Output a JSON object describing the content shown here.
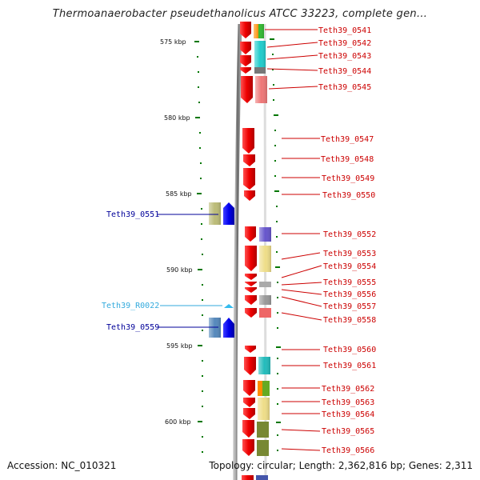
{
  "title": "Thermoanaerobacter pseudethanolicus ATCC 33223, complete gen...",
  "accession": "Accession: NC_010321",
  "topology": "Topology: circular; Length: 2,362,816 bp; Genes: 2,311",
  "scale_labels": [
    "575 kbp",
    "580 kbp",
    "585 kbp",
    "590 kbp",
    "595 kbp",
    "600 kbp"
  ],
  "colors": {
    "gene_red": "#e00000",
    "gene_blue": "#0000e0",
    "rna_cyan": "#33bbee",
    "label_red": "#cc0000",
    "label_blue": "#000099",
    "label_cyan": "#33aadd",
    "tick_green": "#007700"
  },
  "right_labels": [
    "Teth39_0541",
    "Teth39_0542",
    "Teth39_0543",
    "Teth39_0544",
    "Teth39_0545",
    "Teth39_0547",
    "Teth39_0548",
    "Teth39_0549",
    "Teth39_0550",
    "Teth39_0552",
    "Teth39_0553",
    "Teth39_0554",
    "Teth39_0555",
    "Teth39_0556",
    "Teth39_0557",
    "Teth39_0558",
    "Teth39_0560",
    "Teth39_0561",
    "Teth39_0562",
    "Teth39_0563",
    "Teth39_0564",
    "Teth39_0565",
    "Teth39_0566"
  ],
  "left_labels": [
    "Teth39_0551",
    "Teth39_R0022",
    "Teth39_0559"
  ]
}
